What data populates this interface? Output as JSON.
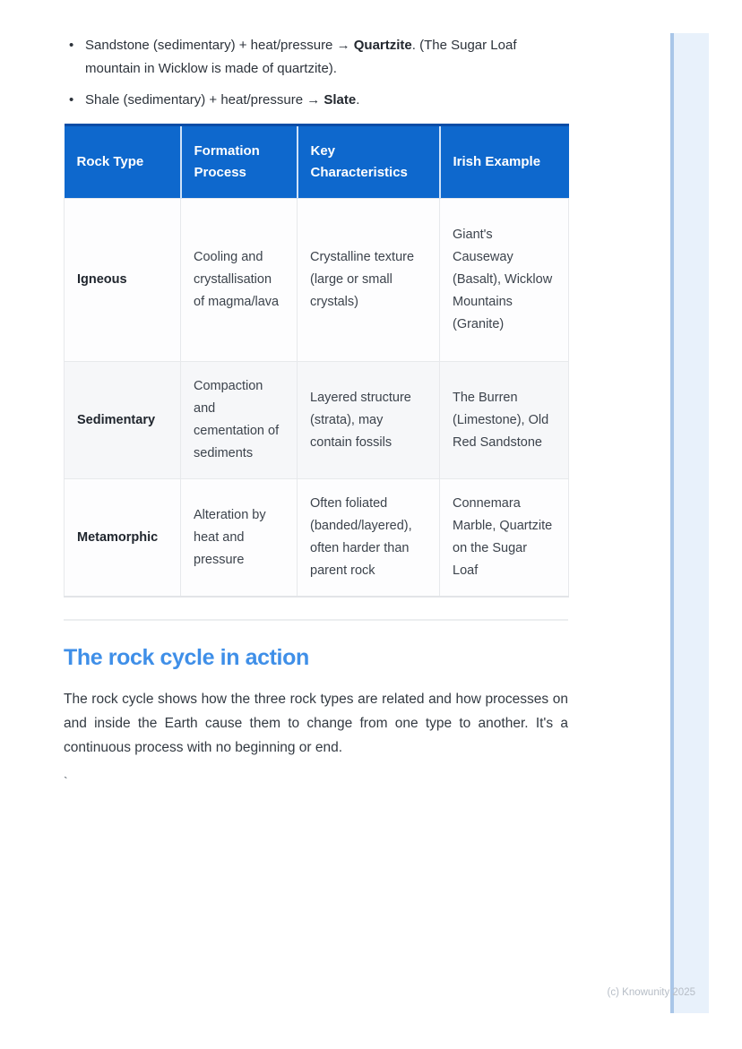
{
  "page": {
    "bullets": [
      {
        "segments": [
          {
            "text": "Sandstone (sedimentary) + heat/pressure → ",
            "bold": false
          },
          {
            "text": "Quartzite",
            "bold": true
          },
          {
            "text": ". (The Sugar Loaf mountain in Wicklow is made of quartzite).",
            "bold": false
          }
        ]
      },
      {
        "segments": [
          {
            "text": "Shale (sedimentary) + heat/pressure → ",
            "bold": false
          },
          {
            "text": "Slate",
            "bold": true
          },
          {
            "text": ".",
            "bold": false
          }
        ]
      }
    ],
    "table": {
      "headers": [
        "Rock Type",
        "Formation Process",
        "Key Characteristics",
        "Irish Example"
      ],
      "rows": [
        {
          "rock_type": "Igneous",
          "formation": "Cooling and crystallisation of magma/lava",
          "characteristics": "Crystalline texture (large or small crystals)",
          "irish_example": "Giant's Causeway (Basalt), Wicklow Mountains (Granite)"
        },
        {
          "rock_type": "Sedimentary",
          "formation": "Compaction and cementation of sediments",
          "characteristics": "Layered structure (strata), may contain fossils",
          "irish_example": "The Burren (Limestone), Old Red Sandstone"
        },
        {
          "rock_type": "Metamorphic",
          "formation": "Alteration by heat and pressure",
          "characteristics": "Often foliated (banded/layered), often harder than parent rock",
          "irish_example": "Connemara Marble, Quartzite on the Sugar Loaf"
        }
      ]
    },
    "section_heading": "The rock cycle in action",
    "paragraph": "The rock cycle shows how the three rock types are related and how processes on and inside the Earth cause them to change from one type to another. It's a continuous process with no beginning or end.",
    "stray_character": "`",
    "footer_credit": "(c) Knowunity 2025"
  },
  "colors": {
    "table_header_bg": "#0e68cd",
    "table_header_top_border": "#0a4da6",
    "section_heading_blue": "#3f8fe8",
    "alt_row_bg": "#f6f7f9",
    "edge_bar_fill": "#e8f1fb",
    "edge_bar_line": "#a9c6e8",
    "body_text": "#333a42",
    "footer_text": "#b6bdc6"
  }
}
